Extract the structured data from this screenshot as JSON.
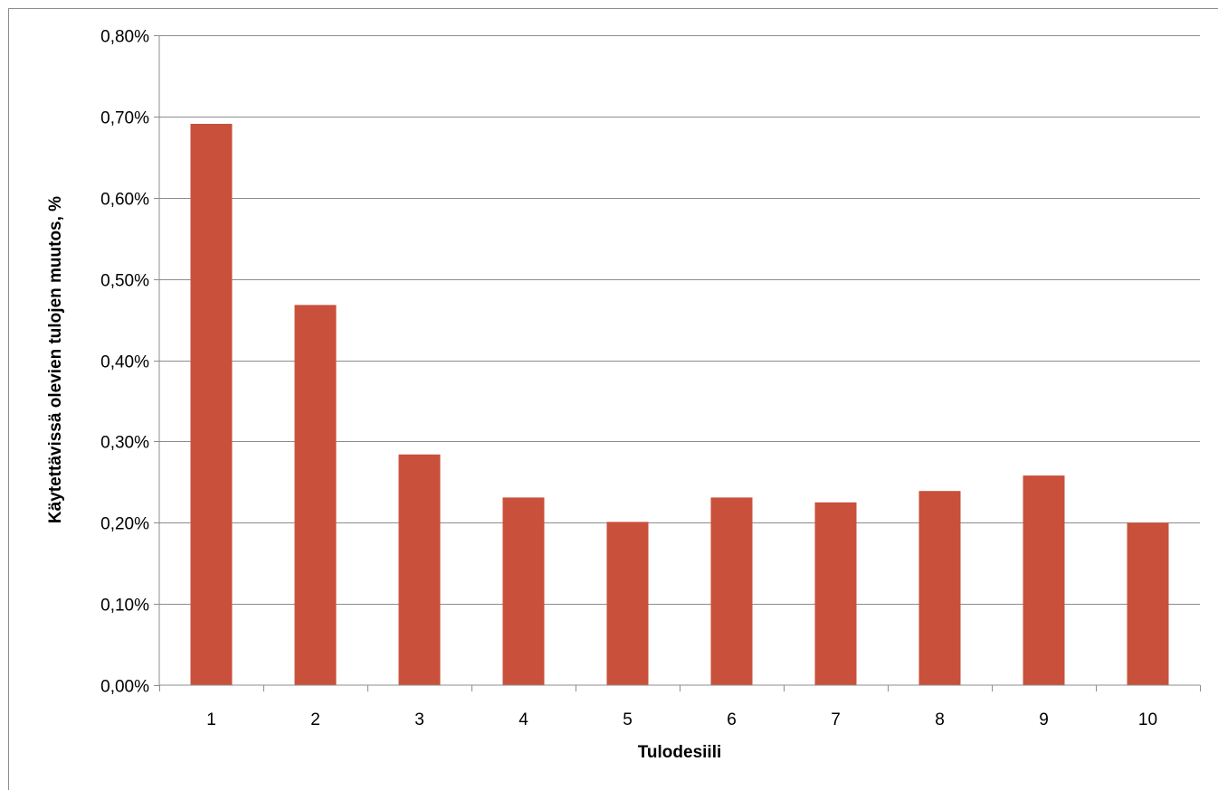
{
  "chart_data": {
    "type": "bar",
    "title": "",
    "xlabel": "Tulodesiili",
    "ylabel": "Käytettävissä olevien tulojen muutos, %",
    "categories": [
      "1",
      "2",
      "3",
      "4",
      "5",
      "6",
      "7",
      "8",
      "9",
      "10"
    ],
    "values": [
      0.691,
      0.468,
      0.284,
      0.231,
      0.201,
      0.231,
      0.225,
      0.239,
      0.258,
      0.2
    ],
    "value_unit": "%",
    "ylim": [
      0,
      0.8
    ],
    "yticks": [
      0,
      0.1,
      0.2,
      0.3,
      0.4,
      0.5,
      0.6,
      0.7,
      0.8
    ],
    "ytick_labels": [
      "0,00%",
      "0,10%",
      "0,20%",
      "0,30%",
      "0,40%",
      "0,50%",
      "0,60%",
      "0,70%",
      "0,80%"
    ],
    "grid": true,
    "legend": "none",
    "bar_color": "#c9503a",
    "grid_color": "#8c8c8c"
  }
}
